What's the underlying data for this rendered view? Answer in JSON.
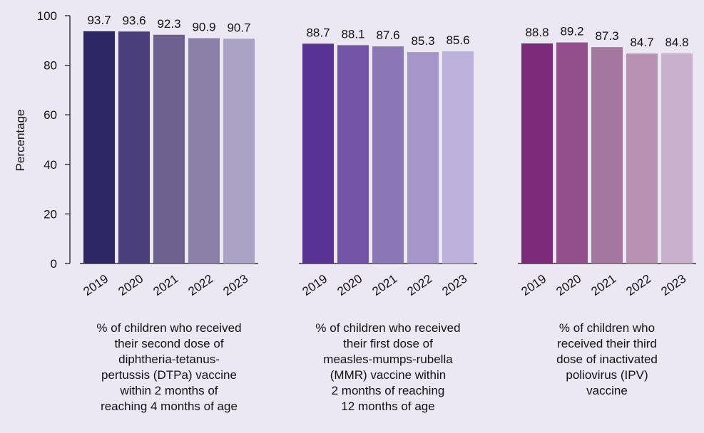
{
  "chart_data": {
    "type": "bar",
    "title": "",
    "xlabel": "",
    "ylabel": "Percentage",
    "ylim": [
      0,
      100
    ],
    "yticks": [
      "0",
      "20",
      "40",
      "60",
      "80",
      "100"
    ],
    "grid": false,
    "groups": [
      {
        "label": "% of children who received their second dose of diphtheria-tetanus-pertussis (DTPa) vaccine within 2 months of reaching 4 months of age",
        "label_lines": [
          "% of children who received",
          "their second dose of",
          "diphtheria-tetanus-",
          "pertussis (DTPa) vaccine",
          "within 2 months of",
          "reaching 4 months of age"
        ],
        "categories": [
          "2019",
          "2020",
          "2021",
          "2022",
          "2023"
        ],
        "values": [
          93.7,
          93.6,
          92.3,
          90.9,
          90.7
        ],
        "value_labels": [
          "93.7",
          "93.6",
          "92.3",
          "90.9",
          "90.7"
        ],
        "colors": [
          "#2d2765",
          "#4a3f78",
          "#6b608e",
          "#8a7fa7",
          "#aaa3c5"
        ]
      },
      {
        "label": "% of children who received their first dose of measles-mumps-rubella (MMR) vaccine within 2 months of reaching 12 months of age",
        "label_lines": [
          "% of children who received",
          "their first dose of",
          "measles-mumps-rubella",
          "(MMR) vaccine within",
          "2 months of reaching",
          "12 months of age"
        ],
        "categories": [
          "2019",
          "2020",
          "2021",
          "2022",
          "2023"
        ],
        "values": [
          88.7,
          88.1,
          87.6,
          85.3,
          85.6
        ],
        "value_labels": [
          "88.7",
          "88.1",
          "87.6",
          "85.3",
          "85.6"
        ],
        "colors": [
          "#593393",
          "#7354a6",
          "#8b76b6",
          "#a595c9",
          "#bbb1da"
        ]
      },
      {
        "label": "% of children who received their third dose of inactivated poliovirus (IPV) vaccine",
        "label_lines": [
          "% of children who",
          "received their third",
          "dose of inactivated",
          "poliovirus (IPV)",
          "vaccine"
        ],
        "categories": [
          "2019",
          "2020",
          "2021",
          "2022",
          "2023"
        ],
        "values": [
          88.8,
          89.2,
          87.3,
          84.7,
          84.8
        ],
        "value_labels": [
          "88.8",
          "89.2",
          "87.3",
          "84.7",
          "84.8"
        ],
        "colors": [
          "#7d2a7b",
          "#924f8c",
          "#a4779f",
          "#b792b3",
          "#c9b0cd"
        ]
      }
    ]
  }
}
